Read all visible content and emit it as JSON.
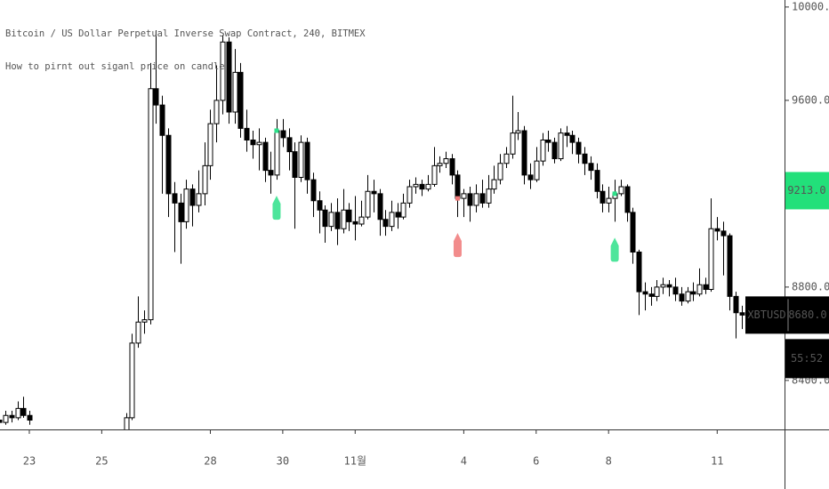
{
  "chart_data": {
    "type": "candlestick",
    "title": "Bitcoin / US Dollar Perpetual Inverse Swap Contract, 240, BITMEX",
    "subtitle": "How to pirnt out siganl price on candle",
    "symbol": "XBTUSD",
    "last_price": {
      "value": 8680,
      "label": "8680.0"
    },
    "countdown": "55:52",
    "indicator_value": {
      "value": 9213,
      "label": "9213.0",
      "color": "#22e07a"
    },
    "up_color": "#ffffff",
    "down_color": "#000000",
    "border_color": "#000000",
    "xlim": [
      -0.81,
      20.86
    ],
    "ylim": [
      8190,
      10030
    ],
    "xticks": [
      {
        "value": 0,
        "label": "23"
      },
      {
        "value": 2,
        "label": "25"
      },
      {
        "value": 5,
        "label": "28"
      },
      {
        "value": 7,
        "label": "30"
      },
      {
        "value": 9,
        "label": "11월"
      },
      {
        "value": 12,
        "label": "4"
      },
      {
        "value": 14,
        "label": "6"
      },
      {
        "value": 16,
        "label": "8"
      },
      {
        "value": 19,
        "label": "11"
      }
    ],
    "yticks": [
      {
        "value": 8400,
        "label": "8400.0"
      },
      {
        "value": 8800,
        "label": "8800.0"
      },
      {
        "value": 9600,
        "label": "9600.0"
      },
      {
        "value": 10000,
        "label": "10000.0"
      }
    ],
    "x": [
      -0.83,
      -0.67,
      -0.5,
      -0.33,
      -0.17,
      0,
      2.67,
      2.83,
      3,
      3.17,
      3.33,
      3.5,
      3.67,
      3.83,
      4,
      4.17,
      4.33,
      4.5,
      4.67,
      4.83,
      5,
      5.17,
      5.33,
      5.5,
      5.67,
      5.83,
      6,
      6.17,
      6.33,
      6.5,
      6.67,
      6.83,
      7,
      7.17,
      7.33,
      7.5,
      7.67,
      7.83,
      8,
      8.17,
      8.33,
      8.5,
      8.67,
      8.83,
      9,
      9.17,
      9.33,
      9.5,
      9.67,
      9.83,
      10,
      10.17,
      10.33,
      10.5,
      10.67,
      10.83,
      11,
      11.17,
      11.33,
      11.5,
      11.67,
      11.83,
      12,
      12.17,
      12.33,
      12.5,
      12.67,
      12.83,
      13,
      13.17,
      13.33,
      13.5,
      13.67,
      13.83,
      14,
      14.17,
      14.33,
      14.5,
      14.67,
      14.83,
      15,
      15.17,
      15.33,
      15.5,
      15.67,
      15.83,
      16,
      16.17,
      16.33,
      16.5,
      16.67,
      16.83,
      17,
      17.17,
      17.33,
      17.5,
      17.67,
      17.83,
      18,
      18.17,
      18.33,
      18.5,
      18.67,
      18.83,
      19,
      19.17,
      19.33,
      19.5,
      19.67
    ],
    "open": [
      8230,
      8220,
      8250,
      8240,
      8280,
      8250,
      8180,
      8240,
      8560,
      8650,
      8660,
      9650,
      9580,
      9450,
      9200,
      9160,
      9080,
      9220,
      9150,
      9200,
      9320,
      9500,
      9600,
      9850,
      9550,
      9720,
      9480,
      9430,
      9410,
      9420,
      9300,
      9280,
      9470,
      9440,
      9380,
      9270,
      9420,
      9260,
      9170,
      9130,
      9060,
      9120,
      9050,
      9130,
      9080,
      9070,
      9100,
      9210,
      9200,
      9090,
      9060,
      9120,
      9100,
      9160,
      9230,
      9240,
      9220,
      9240,
      9320,
      9330,
      9350,
      9280,
      9180,
      9200,
      9150,
      9200,
      9160,
      9220,
      9260,
      9330,
      9370,
      9460,
      9470,
      9280,
      9260,
      9340,
      9430,
      9420,
      9350,
      9460,
      9450,
      9420,
      9370,
      9330,
      9300,
      9210,
      9160,
      9180,
      9200,
      9230,
      9120,
      8950,
      8780,
      8770,
      8760,
      8800,
      8810,
      8800,
      8770,
      8740,
      8780,
      8770,
      8810,
      8790,
      9050,
      9040,
      9020,
      8760,
      8690
    ],
    "high": [
      8250,
      8270,
      8270,
      8310,
      8330,
      8270,
      8260,
      8600,
      8760,
      8700,
      9760,
      9900,
      9620,
      9480,
      9250,
      9200,
      9260,
      9240,
      9300,
      9420,
      9560,
      9750,
      9880,
      9870,
      9820,
      9760,
      9560,
      9470,
      9480,
      9440,
      9380,
      9520,
      9520,
      9480,
      9420,
      9450,
      9440,
      9290,
      9210,
      9150,
      9160,
      9180,
      9220,
      9160,
      9190,
      9170,
      9280,
      9260,
      9220,
      9130,
      9170,
      9160,
      9200,
      9260,
      9270,
      9260,
      9280,
      9400,
      9360,
      9380,
      9370,
      9300,
      9220,
      9230,
      9240,
      9260,
      9280,
      9320,
      9370,
      9400,
      9620,
      9550,
      9490,
      9330,
      9400,
      9460,
      9470,
      9440,
      9480,
      9490,
      9470,
      9440,
      9400,
      9360,
      9330,
      9240,
      9230,
      9260,
      9260,
      9240,
      9140,
      8960,
      8820,
      8800,
      8830,
      8840,
      8830,
      8840,
      8800,
      8800,
      8820,
      8880,
      8840,
      9180,
      9100,
      9080,
      9030,
      8780,
      8720
    ],
    "low": [
      8210,
      8210,
      8220,
      8230,
      8240,
      8210,
      8170,
      8230,
      8540,
      8600,
      8640,
      9500,
      9200,
      9100,
      8950,
      8900,
      9050,
      9060,
      9120,
      9150,
      9260,
      9420,
      9540,
      9500,
      9500,
      9440,
      9380,
      9350,
      9300,
      9250,
      9200,
      9260,
      9400,
      9300,
      9050,
      9250,
      9200,
      9100,
      9030,
      8990,
      9040,
      8980,
      9030,
      9040,
      9000,
      9060,
      9090,
      9120,
      9020,
      9020,
      9040,
      9050,
      9090,
      9140,
      9200,
      9190,
      9210,
      9230,
      9290,
      9310,
      9240,
      9100,
      9100,
      9080,
      9120,
      9140,
      9140,
      9200,
      9240,
      9310,
      9350,
      9430,
      9240,
      9220,
      9250,
      9320,
      9380,
      9330,
      9340,
      9400,
      9370,
      9330,
      9280,
      9260,
      9180,
      9120,
      9120,
      9080,
      9190,
      9080,
      8900,
      8680,
      8700,
      8720,
      8740,
      8770,
      8760,
      8740,
      8720,
      8730,
      8740,
      8760,
      8770,
      8780,
      9000,
      8850,
      8700,
      8580,
      8620
    ],
    "close": [
      8220,
      8250,
      8240,
      8280,
      8250,
      8230,
      8240,
      8560,
      8650,
      8660,
      9650,
      9580,
      9450,
      9200,
      9160,
      9080,
      9220,
      9150,
      9200,
      9320,
      9500,
      9600,
      9850,
      9550,
      9720,
      9480,
      9430,
      9410,
      9420,
      9300,
      9280,
      9470,
      9440,
      9380,
      9270,
      9420,
      9260,
      9170,
      9130,
      9060,
      9120,
      9050,
      9130,
      9080,
      9070,
      9100,
      9210,
      9200,
      9090,
      9060,
      9120,
      9100,
      9160,
      9230,
      9240,
      9220,
      9240,
      9320,
      9330,
      9350,
      9280,
      9180,
      9200,
      9150,
      9200,
      9160,
      9220,
      9260,
      9330,
      9370,
      9460,
      9470,
      9280,
      9260,
      9340,
      9430,
      9420,
      9350,
      9460,
      9450,
      9420,
      9370,
      9330,
      9300,
      9210,
      9160,
      9180,
      9200,
      9230,
      9120,
      8950,
      8780,
      8770,
      8760,
      8800,
      8810,
      8800,
      8770,
      8740,
      8780,
      8770,
      8810,
      8790,
      9050,
      9040,
      9020,
      8760,
      8690,
      8680
    ],
    "signals": [
      {
        "x": 6.83,
        "price": 9470,
        "color": "#2ee08a"
      },
      {
        "x": 11.83,
        "price": 9180,
        "color": "#f07878"
      },
      {
        "x": 16.17,
        "price": 9200,
        "color": "#2ee08a"
      }
    ]
  }
}
